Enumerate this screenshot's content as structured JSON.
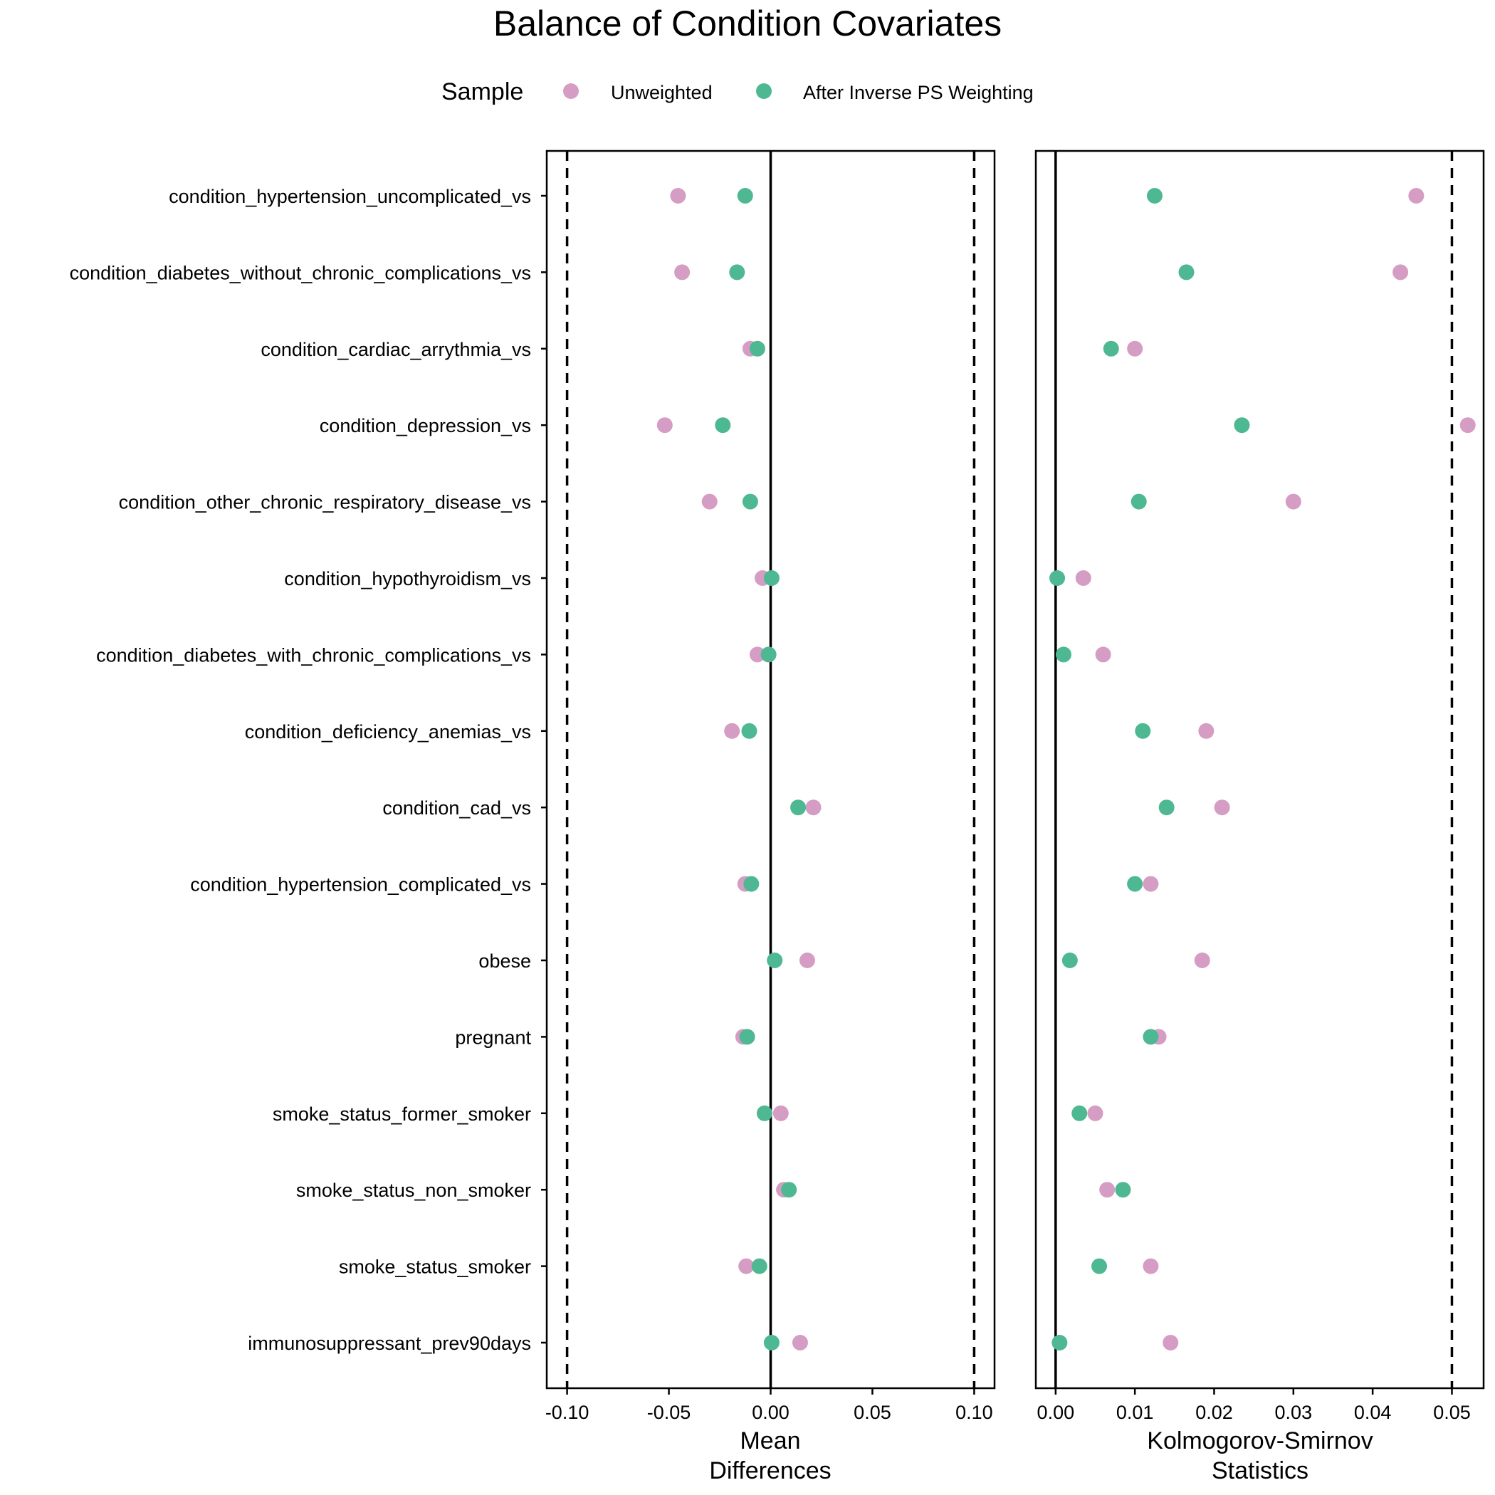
{
  "title": "Balance of Condition Covariates",
  "legend": {
    "title": "Sample",
    "position": "top",
    "entries": [
      {
        "label": "Unweighted",
        "color": "#D59DC3"
      },
      {
        "label": "After Inverse PS Weighting",
        "color": "#4EB893"
      }
    ]
  },
  "chart_data": [
    {
      "type": "scatter",
      "xlabel": [
        "Mean",
        "Differences"
      ],
      "xlim": [
        -0.11,
        0.11
      ],
      "xticks": [
        -0.1,
        -0.05,
        0.0,
        0.05,
        0.1
      ],
      "xtick_labels": [
        "-0.10",
        "-0.05",
        "0.00",
        "0.05",
        "0.10"
      ],
      "reference_line": 0,
      "threshold_lines": [
        -0.1,
        0.1
      ],
      "grid": false,
      "categories": [
        "condition_hypertension_uncomplicated_vs",
        "condition_diabetes_without_chronic_complications_vs",
        "condition_cardiac_arrythmia_vs",
        "condition_depression_vs",
        "condition_other_chronic_respiratory_disease_vs",
        "condition_hypothyroidism_vs",
        "condition_diabetes_with_chronic_complications_vs",
        "condition_deficiency_anemias_vs",
        "condition_cad_vs",
        "condition_hypertension_complicated_vs",
        "obese",
        "pregnant",
        "smoke_status_former_smoker",
        "smoke_status_non_smoker",
        "smoke_status_smoker",
        "immunosuppressant_prev90days"
      ],
      "series": [
        {
          "name": "Unweighted",
          "values": [
            -0.0455,
            -0.0435,
            -0.01,
            -0.052,
            -0.03,
            -0.004,
            -0.0065,
            -0.019,
            0.021,
            -0.0125,
            0.018,
            -0.0135,
            0.005,
            0.0065,
            -0.012,
            0.0145
          ]
        },
        {
          "name": "After Inverse PS Weighting",
          "values": [
            -0.0125,
            -0.0165,
            -0.0065,
            -0.0235,
            -0.01,
            0.0005,
            -0.001,
            -0.0105,
            0.0135,
            -0.0095,
            0.002,
            -0.0115,
            -0.003,
            0.009,
            -0.0055,
            0.0005
          ]
        }
      ]
    },
    {
      "type": "scatter",
      "xlabel": [
        "Kolmogorov-Smirnov",
        "Statistics"
      ],
      "xlim": [
        -0.0025,
        0.054
      ],
      "xticks": [
        0.0,
        0.01,
        0.02,
        0.03,
        0.04,
        0.05
      ],
      "xtick_labels": [
        "0.00",
        "0.01",
        "0.02",
        "0.03",
        "0.04",
        "0.05"
      ],
      "reference_line": 0,
      "threshold_lines": [
        0.05
      ],
      "grid": false,
      "series": [
        {
          "name": "Unweighted",
          "values": [
            0.0455,
            0.0435,
            0.01,
            0.052,
            0.03,
            0.0035,
            0.006,
            0.019,
            0.021,
            0.012,
            0.0185,
            0.013,
            0.005,
            0.0065,
            0.012,
            0.0145
          ]
        },
        {
          "name": "After Inverse PS Weighting",
          "values": [
            0.0125,
            0.0165,
            0.007,
            0.0235,
            0.0105,
            0.0002,
            0.001,
            0.011,
            0.014,
            0.01,
            0.0018,
            0.012,
            0.003,
            0.0085,
            0.0055,
            0.0005
          ]
        }
      ]
    }
  ]
}
